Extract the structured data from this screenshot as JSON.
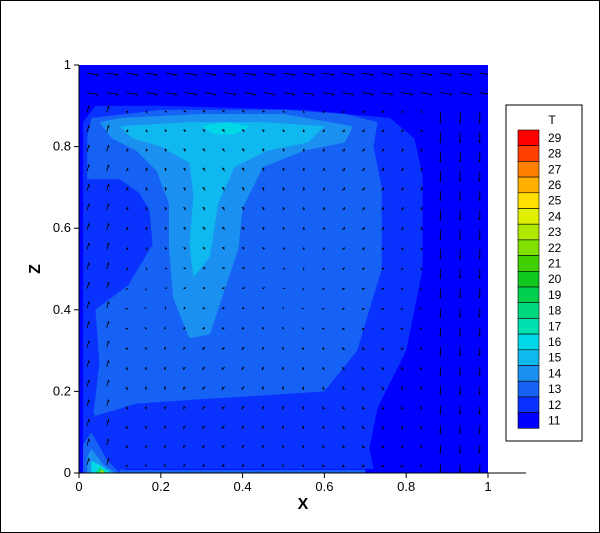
{
  "chart_data": {
    "type": "heatmap",
    "xlabel": "X",
    "ylabel": "Z",
    "xlim": [
      0,
      1
    ],
    "ylim": [
      0,
      1
    ],
    "x_ticks": [
      "0",
      "0.2",
      "0.4",
      "0.6",
      "0.8",
      "1"
    ],
    "y_ticks": [
      "0",
      "0.2",
      "0.4",
      "0.6",
      "0.8",
      "1"
    ],
    "colorbar": {
      "title": "T",
      "levels": [
        11,
        12,
        13,
        14,
        15,
        16,
        17,
        18,
        19,
        20,
        21,
        22,
        23,
        24,
        25,
        26,
        27,
        28,
        29
      ],
      "colors": [
        "#0000ff",
        "#0a32ff",
        "#1562f5",
        "#1a90f0",
        "#10b8f0",
        "#00d8e8",
        "#00e0b0",
        "#00d880",
        "#00d050",
        "#10c820",
        "#40d000",
        "#80e000",
        "#b0e800",
        "#e0f000",
        "#ffe000",
        "#ffb000",
        "#ff8000",
        "#ff4000",
        "#ff0000"
      ]
    },
    "field_layers": [
      {
        "level": 11,
        "points": [
          [
            0,
            0
          ],
          [
            1,
            0
          ],
          [
            1,
            1
          ],
          [
            0,
            1
          ]
        ]
      },
      {
        "level": 12,
        "points": [
          [
            0.01,
            0.01
          ],
          [
            0.72,
            0.01
          ],
          [
            0.71,
            0.06
          ],
          [
            0.73,
            0.16
          ],
          [
            0.8,
            0.3
          ],
          [
            0.84,
            0.5
          ],
          [
            0.84,
            0.73
          ],
          [
            0.82,
            0.82
          ],
          [
            0.76,
            0.87
          ],
          [
            0.55,
            0.89
          ],
          [
            0.2,
            0.9
          ],
          [
            0.04,
            0.9
          ],
          [
            0.01,
            0.86
          ]
        ]
      },
      {
        "level": 13,
        "points": [
          [
            0.02,
            0.02
          ],
          [
            0.04,
            0.14
          ],
          [
            0.14,
            0.17
          ],
          [
            0.28,
            0.18
          ],
          [
            0.45,
            0.19
          ],
          [
            0.6,
            0.2
          ],
          [
            0.68,
            0.3
          ],
          [
            0.74,
            0.5
          ],
          [
            0.74,
            0.7
          ],
          [
            0.72,
            0.8
          ],
          [
            0.73,
            0.86
          ],
          [
            0.65,
            0.88
          ],
          [
            0.5,
            0.89
          ],
          [
            0.2,
            0.89
          ],
          [
            0.03,
            0.87
          ],
          [
            0.02,
            0.82
          ],
          [
            0.02,
            0.72
          ],
          [
            0.1,
            0.72
          ],
          [
            0.17,
            0.67
          ],
          [
            0.18,
            0.56
          ],
          [
            0.12,
            0.46
          ],
          [
            0.04,
            0.4
          ],
          [
            0.05,
            0.27
          ],
          [
            0.03,
            0.1
          ]
        ]
      },
      {
        "level": 13,
        "points": [
          [
            0.12,
            0.73
          ],
          [
            0.2,
            0.6
          ],
          [
            0.2,
            0.45
          ],
          [
            0.17,
            0.3
          ],
          [
            0.25,
            0.25
          ],
          [
            0.4,
            0.25
          ],
          [
            0.52,
            0.27
          ],
          [
            0.55,
            0.35
          ],
          [
            0.5,
            0.45
          ],
          [
            0.47,
            0.6
          ],
          [
            0.53,
            0.63
          ],
          [
            0.62,
            0.55
          ],
          [
            0.7,
            0.48
          ],
          [
            0.72,
            0.6
          ],
          [
            0.7,
            0.72
          ],
          [
            0.65,
            0.82
          ],
          [
            0.45,
            0.83
          ],
          [
            0.25,
            0.82
          ],
          [
            0.15,
            0.79
          ]
        ]
      },
      {
        "level": 14,
        "points": [
          [
            0.05,
            0.86
          ],
          [
            0.1,
            0.87
          ],
          [
            0.3,
            0.88
          ],
          [
            0.5,
            0.88
          ],
          [
            0.67,
            0.85
          ],
          [
            0.65,
            0.81
          ],
          [
            0.55,
            0.79
          ],
          [
            0.45,
            0.75
          ],
          [
            0.4,
            0.65
          ],
          [
            0.39,
            0.55
          ],
          [
            0.36,
            0.46
          ],
          [
            0.32,
            0.34
          ],
          [
            0.27,
            0.33
          ],
          [
            0.23,
            0.43
          ],
          [
            0.22,
            0.55
          ],
          [
            0.22,
            0.66
          ],
          [
            0.19,
            0.74
          ],
          [
            0.14,
            0.79
          ],
          [
            0.08,
            0.82
          ]
        ]
      },
      {
        "level": 15,
        "points": [
          [
            0.1,
            0.85
          ],
          [
            0.27,
            0.86
          ],
          [
            0.45,
            0.86
          ],
          [
            0.6,
            0.85
          ],
          [
            0.56,
            0.81
          ],
          [
            0.46,
            0.79
          ],
          [
            0.38,
            0.75
          ],
          [
            0.34,
            0.66
          ],
          [
            0.32,
            0.53
          ],
          [
            0.28,
            0.48
          ],
          [
            0.27,
            0.56
          ],
          [
            0.28,
            0.68
          ],
          [
            0.27,
            0.76
          ],
          [
            0.2,
            0.8
          ],
          [
            0.13,
            0.82
          ]
        ]
      },
      {
        "level": 16,
        "points": [
          [
            0.3,
            0.85
          ],
          [
            0.36,
            0.86
          ],
          [
            0.42,
            0.85
          ],
          [
            0.38,
            0.83
          ],
          [
            0.33,
            0.83
          ]
        ]
      },
      {
        "level": 12,
        "points": [
          [
            0.01,
            0.0
          ],
          [
            0.12,
            0.0
          ],
          [
            0.09,
            0.03
          ],
          [
            0.03,
            0.16
          ],
          [
            0.01,
            0.12
          ]
        ]
      },
      {
        "level": 13,
        "points": [
          [
            0.01,
            0.0
          ],
          [
            0.1,
            0.0
          ],
          [
            0.07,
            0.03
          ],
          [
            0.03,
            0.1
          ],
          [
            0.01,
            0.07
          ]
        ]
      },
      {
        "level": 14,
        "points": [
          [
            0.02,
            0.0
          ],
          [
            0.09,
            0.0
          ],
          [
            0.06,
            0.02
          ],
          [
            0.03,
            0.06
          ],
          [
            0.02,
            0.04
          ]
        ]
      },
      {
        "level": 16,
        "points": [
          [
            0.03,
            0.0
          ],
          [
            0.08,
            0.0
          ],
          [
            0.05,
            0.02
          ],
          [
            0.03,
            0.03
          ]
        ]
      },
      {
        "level": 18,
        "points": [
          [
            0.04,
            0.0
          ],
          [
            0.07,
            0.0
          ],
          [
            0.05,
            0.015
          ]
        ]
      },
      {
        "level": 23,
        "points": [
          [
            0.05,
            0.0
          ],
          [
            0.065,
            0.0
          ],
          [
            0.055,
            0.008
          ]
        ]
      },
      {
        "level": 13,
        "points": [
          [
            0.1,
            0.0
          ],
          [
            0.7,
            0.0
          ],
          [
            0.7,
            0.008
          ],
          [
            0.1,
            0.008
          ]
        ]
      }
    ]
  }
}
